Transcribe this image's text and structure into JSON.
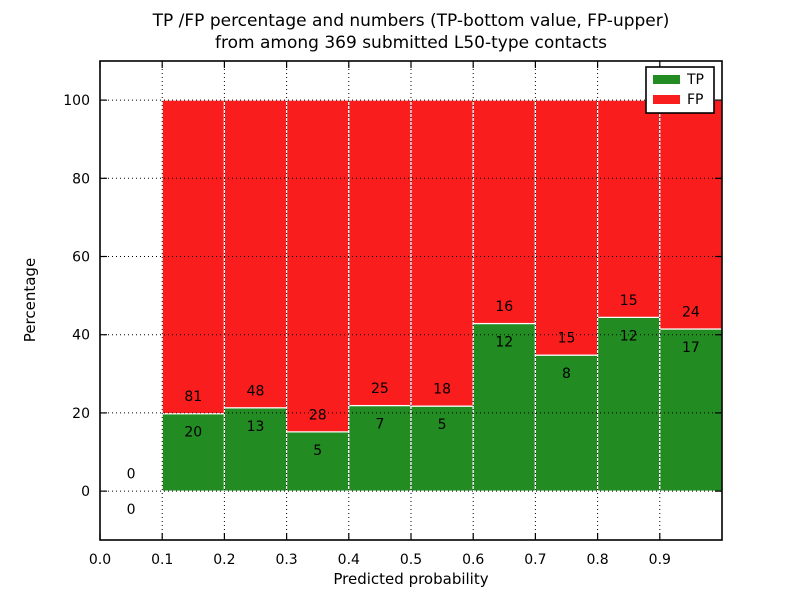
{
  "figure": {
    "title_line1": "TP /FP percentage and numbers (TP-bottom value, FP-upper)",
    "title_line2": "from among 369 submitted L50-type contacts",
    "background": "#ffffff"
  },
  "chart_data": {
    "type": "bar",
    "stacked": true,
    "title": "TP /FP percentage and numbers (TP-bottom value, FP-upper)\nfrom among 369 submitted L50-type contacts",
    "xlabel": "Predicted probability",
    "ylabel": "Percentage",
    "xlim": [
      0.0,
      1.0
    ],
    "ylim": [
      -12.5,
      110
    ],
    "xtick_labels": [
      "0.0",
      "0.1",
      "0.2",
      "0.3",
      "0.4",
      "0.5",
      "0.6",
      "0.7",
      "0.8",
      "0.9"
    ],
    "xtick_values": [
      0.0,
      0.1,
      0.2,
      0.3,
      0.4,
      0.5,
      0.6,
      0.7,
      0.8,
      0.9
    ],
    "ytick_values": [
      0,
      20,
      40,
      60,
      80,
      100
    ],
    "grid": "dotted",
    "grid_color": "#000000",
    "bar_edge_color": "#ffffff",
    "total_contacts": 369,
    "bin_width": 0.1,
    "bin_starts": [
      0.0,
      0.1,
      0.2,
      0.3,
      0.4,
      0.5,
      0.6,
      0.7,
      0.8,
      0.9
    ],
    "series": [
      {
        "name": "TP",
        "color": "#228b22",
        "counts": [
          0,
          20,
          13,
          5,
          7,
          5,
          12,
          8,
          12,
          17
        ],
        "pct": [
          0,
          19.8,
          21.31,
          15.15,
          21.88,
          21.74,
          42.86,
          34.78,
          44.44,
          41.46
        ]
      },
      {
        "name": "FP",
        "color": "#fa1d1d",
        "counts": [
          0,
          81,
          48,
          28,
          25,
          18,
          16,
          15,
          15,
          24
        ],
        "pct": [
          0,
          80.2,
          78.69,
          84.85,
          78.13,
          78.26,
          57.14,
          65.22,
          55.56,
          58.54
        ]
      }
    ],
    "legend": {
      "position": "upper-right",
      "entries": [
        "TP",
        "FP"
      ]
    }
  }
}
